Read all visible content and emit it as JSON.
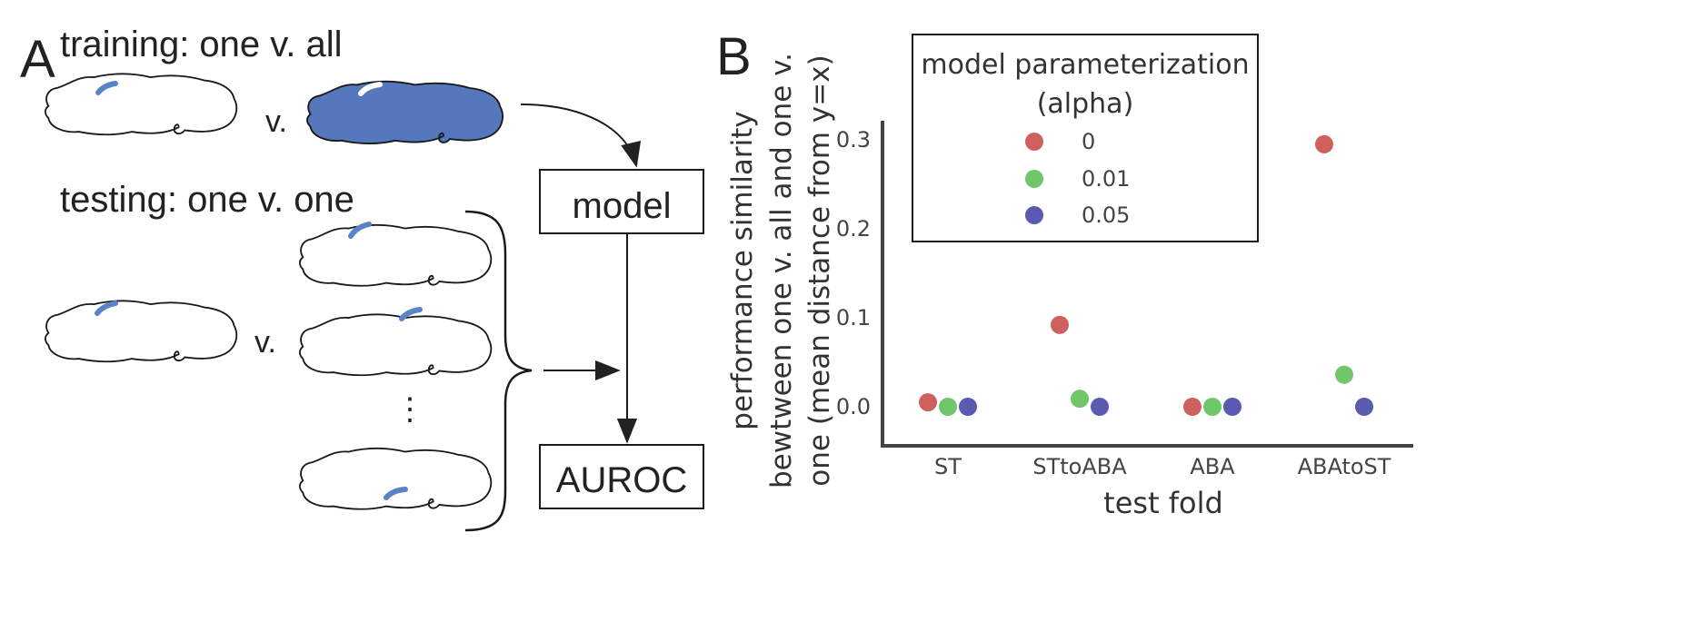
{
  "panel_a": {
    "letter": "A",
    "training_title": "training: one v. all",
    "testing_title": "testing: one v. one",
    "vs_label": "v.",
    "ellipsis": "⋮",
    "model_box": "model",
    "auroc_box": "AUROC",
    "brain_fill_color": "#5577bb",
    "region_color": "#5a83c7"
  },
  "panel_b": {
    "letter": "B",
    "legend": {
      "title_line1": "model parameterization",
      "title_line2": "(alpha)",
      "items": [
        {
          "label": "0",
          "color": "#d0605e"
        },
        {
          "label": "0.01",
          "color": "#6fc76a"
        },
        {
          "label": "0.05",
          "color": "#5a5ab0"
        }
      ]
    },
    "ylabel_lines": [
      "performance similarity",
      "bewtween one v. all and one v.",
      "one (mean distance from y=x)"
    ]
  },
  "chart_data": {
    "type": "scatter",
    "xlabel": "test fold",
    "ylabel": "performance similarity bewtween one v. all and one v. one (mean distance from y=x)",
    "categories": [
      "ST",
      "STtoABA",
      "ABA",
      "ABAtoST"
    ],
    "ylim": [
      -0.04,
      0.32
    ],
    "yticks": [
      0.0,
      0.1,
      0.2,
      0.3
    ],
    "ytick_labels": [
      "0.0",
      "0.1",
      "0.2",
      "0.3"
    ],
    "grid": false,
    "legend_position": "top-left",
    "series": [
      {
        "name": "0",
        "color": "#d0605e",
        "values": [
          0.005,
          0.092,
          0.0,
          0.295
        ]
      },
      {
        "name": "0.01",
        "color": "#6fc76a",
        "values": [
          0.0,
          0.009,
          0.0,
          0.036
        ]
      },
      {
        "name": "0.05",
        "color": "#5a5ab0",
        "values": [
          0.0,
          0.0,
          0.0,
          0.0
        ]
      }
    ]
  }
}
